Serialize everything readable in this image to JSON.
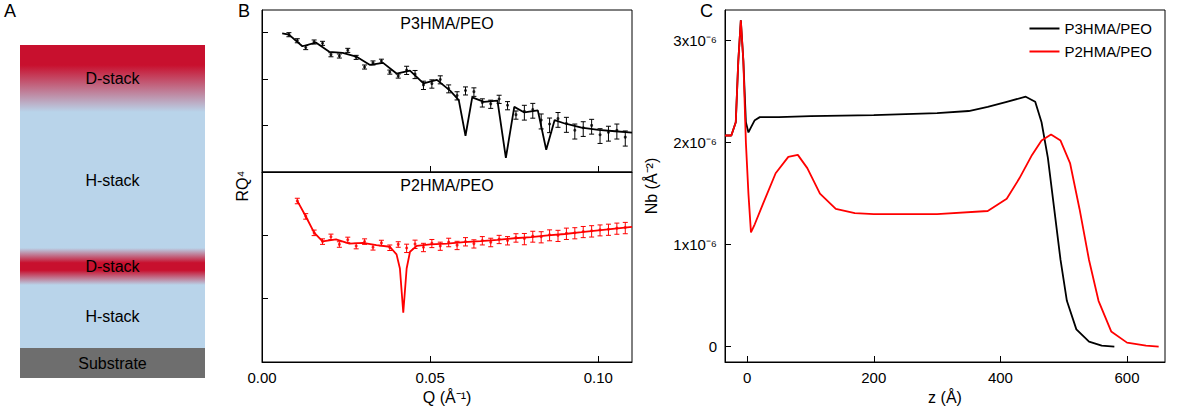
{
  "diagram": {
    "panel_label": "A",
    "layers": [
      {
        "label": "D-stack",
        "color": "#c8102e"
      },
      {
        "label": "H-stack",
        "color": "#b9d4ea"
      },
      {
        "label": "D-stack",
        "color": "#c8102e"
      },
      {
        "label": "H-stack",
        "color": "#b9d4ea"
      },
      {
        "label": "Substrate",
        "color": "#6e6e6e"
      }
    ]
  },
  "chart_data": [
    {
      "type": "scatter",
      "panel_label": "B",
      "title": "P3HMA/PEO",
      "ylabel": "RQ⁴",
      "log": "y",
      "tick_labels": false,
      "xlim": [
        0,
        0.11
      ],
      "xticks": [
        {
          "value": 0,
          "label": "0.00"
        },
        0.05,
        {
          "value": 0.1,
          "label": "0.10"
        }
      ],
      "ylim": [
        1e-09,
        3e-06
      ],
      "yticks": [
        1e-09,
        1e-08,
        1e-07,
        1e-06
      ],
      "series": [
        {
          "type": "scatter",
          "color": "#000000",
          "marker": "circle",
          "x": [
            0.008,
            0.0105,
            0.013,
            0.0155,
            0.018,
            0.0205,
            0.023,
            0.0255,
            0.028,
            0.0305,
            0.033,
            0.0355,
            0.038,
            0.0405,
            0.043,
            0.0455,
            0.048,
            0.0505,
            0.053,
            0.0555,
            0.058,
            0.0605,
            0.063,
            0.0655,
            0.068,
            0.0705,
            0.073,
            0.0755,
            0.078,
            0.0805,
            0.083,
            0.0855,
            0.088,
            0.0905,
            0.093,
            0.0955,
            0.098,
            0.1005,
            0.103,
            0.1055,
            0.108
          ],
          "values": [
            8.9e-07,
            6.6e-07,
            4.7e-07,
            6.2e-07,
            5.8e-07,
            3.3e-07,
            3.1e-07,
            4.1e-07,
            2.9e-07,
            1.8e-07,
            2.2e-07,
            2.4e-07,
            1.4e-07,
            1.15e-07,
            1.55e-07,
            1.26e-07,
            7.4e-08,
            7.9e-08,
            9.7e-08,
            6.2e-08,
            4.4e-08,
            5.6e-08,
            5.3e-08,
            3.1e-08,
            2.9e-08,
            3.7e-08,
            2.7e-08,
            1.7e-08,
            2e-08,
            2.2e-08,
            1.3e-08,
            1.07e-08,
            1.4e-08,
            1.1e-08,
            7.9e-09,
            8.9e-09,
            1e-08,
            6.3e-09,
            7.1e-09,
            7.9e-09,
            5.6e-09
          ],
          "errors": [
            8.9e-08,
            6.6e-08,
            4.7e-08,
            6.2e-08,
            5.8e-08,
            3.3e-08,
            3.1e-08,
            4.1e-08,
            2.9e-08,
            1.8e-08,
            2.2e-08,
            2.4e-08,
            1.4e-08,
            1.15e-08,
            3.1e-08,
            2.5e-08,
            1.5e-08,
            1.6e-08,
            1.9e-08,
            1.2e-08,
            8.8e-09,
            1.1e-08,
            1.1e-08,
            6.2e-09,
            5.8e-09,
            7.4e-09,
            5.4e-09,
            3.4e-09,
            7e-09,
            7.7e-09,
            4.6e-09,
            3.7e-09,
            4.9e-09,
            3.9e-09,
            2.8e-09,
            3.1e-09,
            3.5e-09,
            2.2e-09,
            2.5e-09,
            2.8e-09,
            2e-09
          ]
        },
        {
          "type": "line",
          "color": "#000000",
          "line_style": "solid",
          "x": [
            0.006,
            0.008,
            0.012,
            0.016,
            0.02,
            0.024,
            0.028,
            0.032,
            0.036,
            0.04,
            0.044,
            0.048,
            0.052,
            0.056,
            0.0585,
            0.0605,
            0.0625,
            0.066,
            0.07,
            0.0725,
            0.075,
            0.078,
            0.082,
            0.0845,
            0.087,
            0.09,
            0.095,
            0.1,
            0.105,
            0.11
          ],
          "values": [
            9.5e-07,
            8.9e-07,
            5e-07,
            6e-07,
            3.8e-07,
            3.6e-07,
            3e-07,
            2e-07,
            2.2e-07,
            1.3e-07,
            1.5e-07,
            8e-08,
            9.5e-08,
            5.5e-08,
            3.5e-08,
            6e-09,
            4e-08,
            3.2e-08,
            3.4e-08,
            2e-09,
            2.5e-08,
            1.9e-08,
            2.1e-08,
            3e-09,
            1.3e-08,
            1.1e-08,
            9e-09,
            8e-09,
            7.5e-09,
            7e-09
          ]
        }
      ]
    },
    {
      "type": "scatter",
      "title": "P2HMA/PEO",
      "xlabel": "Q (Å⁻¹)",
      "log": "y",
      "tick_labels": "x",
      "xlim": [
        0,
        0.11
      ],
      "xticks": [
        {
          "value": 0,
          "label": "0.00"
        },
        0.05,
        {
          "value": 0.1,
          "label": "0.10"
        }
      ],
      "ylim": [
        1e-10,
        1e-07
      ],
      "yticks": [
        1e-10,
        1e-09,
        1e-08,
        1e-07
      ],
      "series": [
        {
          "type": "scatter",
          "color": "#ff0000",
          "marker": "circle",
          "x": [
            0.0105,
            0.013,
            0.0155,
            0.018,
            0.0205,
            0.023,
            0.0255,
            0.028,
            0.0305,
            0.033,
            0.0355,
            0.038,
            0.0405,
            0.043,
            0.0455,
            0.048,
            0.0505,
            0.053,
            0.0555,
            0.058,
            0.0605,
            0.063,
            0.0655,
            0.068,
            0.0705,
            0.073,
            0.0755,
            0.078,
            0.0805,
            0.083,
            0.0855,
            0.088,
            0.0905,
            0.093,
            0.0955,
            0.098,
            0.1005,
            0.103,
            0.1055,
            0.108
          ],
          "values": [
            3.5e-08,
            2e-08,
            1.1e-08,
            8e-09,
            9.5e-09,
            7.2e-09,
            8.5e-09,
            6.8e-09,
            8e-09,
            6.5e-09,
            7.6e-09,
            6.4e-09,
            7.2e-09,
            6.3e-09,
            7.3e-09,
            6.5e-09,
            7.5e-09,
            6.8e-09,
            7.8e-09,
            7e-09,
            8e-09,
            7.4e-09,
            8.3e-09,
            7.8e-09,
            8.7e-09,
            8.3e-09,
            9.2e-09,
            8.9e-09,
            9.7e-09,
            9.5e-09,
            1.02e-08,
            1e-08,
            1.08e-08,
            1.1e-08,
            1.15e-08,
            1.18e-08,
            1.22e-08,
            1.25e-08,
            1.3e-08,
            1.33e-08
          ],
          "errors": [
            3.5e-09,
            2e-09,
            1.1e-09,
            8e-10,
            9.5e-10,
            7.2e-10,
            8.5e-10,
            6.8e-10,
            8e-10,
            6.5e-10,
            7.6e-10,
            6.4e-10,
            7.2e-10,
            9.5e-10,
            1.1e-09,
            9.8e-10,
            1.1e-09,
            1e-09,
            1.2e-09,
            1.05e-09,
            1.2e-09,
            1.1e-09,
            1.25e-09,
            1.2e-09,
            1.3e-09,
            1.25e-09,
            1.4e-09,
            1.8e-09,
            1.9e-09,
            1.9e-09,
            2e-09,
            2e-09,
            2.2e-09,
            2.2e-09,
            2.3e-09,
            2.4e-09,
            2.4e-09,
            2.5e-09,
            2.6e-09,
            2.7e-09
          ]
        },
        {
          "type": "line",
          "color": "#ff0000",
          "line_style": "solid",
          "x": [
            0.0105,
            0.013,
            0.0155,
            0.018,
            0.022,
            0.026,
            0.03,
            0.034,
            0.038,
            0.04,
            0.041,
            0.042,
            0.043,
            0.044,
            0.046,
            0.05,
            0.055,
            0.06,
            0.065,
            0.07,
            0.075,
            0.08,
            0.085,
            0.09,
            0.095,
            0.1,
            0.105,
            0.11
          ],
          "values": [
            3.5e-08,
            2e-08,
            1.1e-08,
            8e-09,
            8.6e-09,
            7.4e-09,
            7.6e-09,
            7e-09,
            6.6e-09,
            5e-09,
            3e-09,
            6e-10,
            3e-09,
            5.5e-09,
            6.8e-09,
            7.2e-09,
            7.4e-09,
            7.8e-09,
            8.1e-09,
            8.5e-09,
            9e-09,
            9.4e-09,
            1e-08,
            1.05e-08,
            1.12e-08,
            1.2e-08,
            1.28e-08,
            1.36e-08
          ]
        }
      ]
    },
    {
      "type": "line",
      "panel_label": "C",
      "xlabel": "z (Å)",
      "ylabel": "Nb (Å⁻²)",
      "legend": "upper right",
      "xlim": [
        -35,
        660
      ],
      "xticks": [
        0,
        200,
        400,
        600
      ],
      "ylim": [
        -1.5e-07,
        3.3e-06
      ],
      "yticks": [
        0,
        {
          "value": 1e-06,
          "label": "1x10⁻⁶"
        },
        {
          "value": 2e-06,
          "label": "2x10⁻⁶"
        },
        {
          "value": 3e-06,
          "label": "3x10⁻⁶"
        }
      ],
      "series": [
        {
          "name": "P3HMA/PEO",
          "color": "#000000",
          "line_style": "solid",
          "x": [
            -35,
            -25,
            -18,
            -14,
            -10,
            -6,
            -2,
            2,
            6,
            12,
            20,
            50,
            100,
            200,
            300,
            350,
            380,
            410,
            440,
            455,
            465,
            475,
            485,
            495,
            505,
            520,
            540,
            560,
            580
          ],
          "values": [
            2.07e-06,
            2.07e-06,
            2.2e-06,
            2.8e-06,
            3.2e-06,
            2.8e-06,
            2.2e-06,
            2.1e-06,
            2.15e-06,
            2.22e-06,
            2.25e-06,
            2.25e-06,
            2.26e-06,
            2.27e-06,
            2.29e-06,
            2.31e-06,
            2.35e-06,
            2.4e-06,
            2.45e-06,
            2.4e-06,
            2.2e-06,
            1.85e-06,
            1.35e-06,
            8.5e-07,
            4.5e-07,
            1.7e-07,
            5e-08,
            1e-08,
            0
          ]
        },
        {
          "name": "P2HMA/PEO",
          "color": "#ff0000",
          "line_style": "solid",
          "x": [
            -35,
            -25,
            -18,
            -14,
            -10,
            -6,
            -2,
            2,
            6,
            12,
            25,
            45,
            65,
            80,
            95,
            115,
            140,
            170,
            200,
            300,
            380,
            410,
            430,
            450,
            465,
            480,
            495,
            510,
            525,
            540,
            555,
            575,
            600,
            630,
            650
          ],
          "values": [
            2.07e-06,
            2.07e-06,
            2.2e-06,
            2.8e-06,
            3.2e-06,
            2.8e-06,
            2e-06,
            1.5e-06,
            1.12e-06,
            1.2e-06,
            1.4e-06,
            1.7e-06,
            1.86e-06,
            1.88e-06,
            1.75e-06,
            1.5e-06,
            1.35e-06,
            1.31e-06,
            1.3e-06,
            1.3e-06,
            1.33e-06,
            1.45e-06,
            1.65e-06,
            1.88e-06,
            2.02e-06,
            2.08e-06,
            2.02e-06,
            1.8e-06,
            1.35e-06,
            8.5e-07,
            4.5e-07,
            1.5e-07,
            4e-08,
            1e-08,
            0
          ]
        }
      ]
    }
  ]
}
